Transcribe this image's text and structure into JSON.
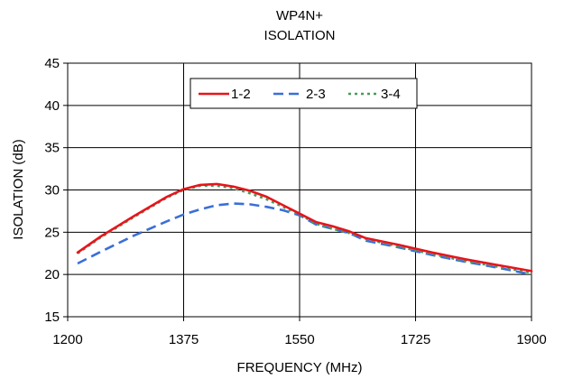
{
  "chart_data": {
    "type": "line",
    "title": "WP4N+",
    "subtitle": "ISOLATION",
    "xlabel": "FREQUENCY (MHz)",
    "ylabel": "ISOLATION (dB)",
    "xlim": [
      1200,
      1900
    ],
    "ylim": [
      15,
      45
    ],
    "xticks": [
      1200,
      1375,
      1550,
      1725,
      1900
    ],
    "yticks": [
      15,
      20,
      25,
      30,
      35,
      40,
      45
    ],
    "grid": true,
    "legend_position": "top",
    "series": [
      {
        "name": "1-2",
        "color": "#e8141c",
        "style": "solid",
        "x": [
          1215,
          1250,
          1300,
          1350,
          1375,
          1400,
          1425,
          1450,
          1475,
          1500,
          1525,
          1550,
          1575,
          1600,
          1625,
          1650,
          1700,
          1750,
          1800,
          1850,
          1900
        ],
        "y": [
          22.6,
          24.5,
          26.9,
          29.2,
          30.1,
          30.6,
          30.7,
          30.4,
          29.9,
          29.2,
          28.2,
          27.2,
          26.2,
          25.7,
          25.1,
          24.3,
          23.5,
          22.6,
          21.8,
          21.1,
          20.4
        ]
      },
      {
        "name": "2-3",
        "color": "#3a6fd8",
        "style": "dashed",
        "x": [
          1215,
          1250,
          1300,
          1350,
          1375,
          1400,
          1425,
          1450,
          1475,
          1500,
          1525,
          1550,
          1575,
          1600,
          1625,
          1650,
          1700,
          1750,
          1800,
          1850,
          1900
        ],
        "y": [
          21.3,
          22.7,
          24.6,
          26.3,
          27.1,
          27.7,
          28.2,
          28.4,
          28.3,
          28.0,
          27.6,
          27.0,
          25.9,
          25.4,
          24.9,
          24.0,
          23.2,
          22.3,
          21.5,
          20.8,
          20.0
        ]
      },
      {
        "name": "3-4",
        "color": "#4c9a5a",
        "style": "dotted",
        "x": [
          1215,
          1250,
          1300,
          1350,
          1375,
          1400,
          1425,
          1450,
          1475,
          1500,
          1525,
          1550,
          1575,
          1600,
          1625,
          1650,
          1700,
          1750,
          1800,
          1850,
          1900
        ],
        "y": [
          22.5,
          24.4,
          26.8,
          29.1,
          30.0,
          30.5,
          30.5,
          30.2,
          29.6,
          28.9,
          28.0,
          27.1,
          26.0,
          25.4,
          24.9,
          24.2,
          23.3,
          22.4,
          21.6,
          20.9,
          20.2
        ]
      }
    ]
  }
}
